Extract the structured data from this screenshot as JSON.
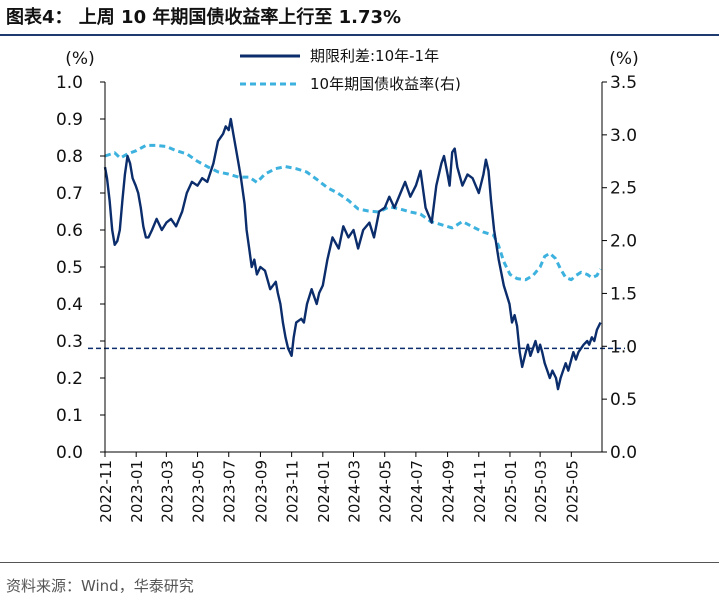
{
  "figure": {
    "title": "图表4：  上周 10 年期国债收益率上行至 1.73%",
    "source": "资料来源：Wind，华泰研究"
  },
  "colors": {
    "spread": "#0b2d6b",
    "yield": "#3db2de",
    "reference": "#0b2d6b",
    "axis": "#000000",
    "title_rule": "#1f3a6e"
  },
  "chart_data": {
    "type": "line",
    "left_unit": "(%)",
    "right_unit": "(%)",
    "left_ylim": [
      0,
      1.0
    ],
    "right_ylim": [
      0,
      3.5
    ],
    "left_ticks": [
      "0.0",
      "0.1",
      "0.2",
      "0.3",
      "0.4",
      "0.5",
      "0.6",
      "0.7",
      "0.8",
      "0.9",
      "1.0"
    ],
    "right_ticks": [
      "0.0",
      "0.5",
      "1.0",
      "1.5",
      "2.0",
      "2.5",
      "3.0",
      "3.5"
    ],
    "x_ticks": [
      "2022-11",
      "2023-01",
      "2023-03",
      "2023-05",
      "2023-07",
      "2023-09",
      "2023-11",
      "2024-01",
      "2024-03",
      "2024-05",
      "2024-07",
      "2024-09",
      "2024-11",
      "2025-01",
      "2025-03",
      "2025-05"
    ],
    "x_range": [
      "2022-11-01",
      "2025-06-30"
    ],
    "grid": false,
    "legend_position": "top-center",
    "reference_line": {
      "axis": "left",
      "y": 0.28,
      "style": "dashed"
    },
    "series": [
      {
        "name": "期限利差:10年-1年",
        "axis": "left",
        "style": "solid",
        "points": [
          [
            "2022-11-01",
            0.77
          ],
          [
            "2022-11-05",
            0.74
          ],
          [
            "2022-11-10",
            0.68
          ],
          [
            "2022-11-15",
            0.6
          ],
          [
            "2022-11-20",
            0.56
          ],
          [
            "2022-11-25",
            0.57
          ],
          [
            "2022-11-30",
            0.6
          ],
          [
            "2022-12-05",
            0.68
          ],
          [
            "2022-12-10",
            0.75
          ],
          [
            "2022-12-15",
            0.8
          ],
          [
            "2022-12-20",
            0.78
          ],
          [
            "2022-12-25",
            0.74
          ],
          [
            "2022-12-31",
            0.72
          ],
          [
            "2023-01-05",
            0.7
          ],
          [
            "2023-01-10",
            0.66
          ],
          [
            "2023-01-15",
            0.61
          ],
          [
            "2023-01-20",
            0.58
          ],
          [
            "2023-01-25",
            0.58
          ],
          [
            "2023-02-01",
            0.6
          ],
          [
            "2023-02-10",
            0.63
          ],
          [
            "2023-02-20",
            0.6
          ],
          [
            "2023-03-01",
            0.62
          ],
          [
            "2023-03-10",
            0.63
          ],
          [
            "2023-03-20",
            0.61
          ],
          [
            "2023-04-01",
            0.65
          ],
          [
            "2023-04-10",
            0.7
          ],
          [
            "2023-04-20",
            0.73
          ],
          [
            "2023-05-01",
            0.72
          ],
          [
            "2023-05-10",
            0.74
          ],
          [
            "2023-05-20",
            0.73
          ],
          [
            "2023-06-01",
            0.78
          ],
          [
            "2023-06-10",
            0.84
          ],
          [
            "2023-06-20",
            0.86
          ],
          [
            "2023-06-25",
            0.88
          ],
          [
            "2023-07-01",
            0.87
          ],
          [
            "2023-07-05",
            0.9
          ],
          [
            "2023-07-10",
            0.86
          ],
          [
            "2023-07-15",
            0.82
          ],
          [
            "2023-07-20",
            0.78
          ],
          [
            "2023-07-25",
            0.74
          ],
          [
            "2023-08-01",
            0.67
          ],
          [
            "2023-08-05",
            0.6
          ],
          [
            "2023-08-10",
            0.55
          ],
          [
            "2023-08-15",
            0.5
          ],
          [
            "2023-08-20",
            0.52
          ],
          [
            "2023-08-25",
            0.48
          ],
          [
            "2023-09-01",
            0.5
          ],
          [
            "2023-09-10",
            0.49
          ],
          [
            "2023-09-20",
            0.44
          ],
          [
            "2023-10-01",
            0.46
          ],
          [
            "2023-10-05",
            0.43
          ],
          [
            "2023-10-10",
            0.4
          ],
          [
            "2023-10-15",
            0.35
          ],
          [
            "2023-10-20",
            0.31
          ],
          [
            "2023-10-25",
            0.28
          ],
          [
            "2023-11-01",
            0.26
          ],
          [
            "2023-11-05",
            0.31
          ],
          [
            "2023-11-10",
            0.35
          ],
          [
            "2023-11-20",
            0.36
          ],
          [
            "2023-11-25",
            0.35
          ],
          [
            "2023-12-01",
            0.4
          ],
          [
            "2023-12-10",
            0.44
          ],
          [
            "2023-12-20",
            0.4
          ],
          [
            "2023-12-25",
            0.43
          ],
          [
            "2024-01-01",
            0.45
          ],
          [
            "2024-01-10",
            0.52
          ],
          [
            "2024-01-20",
            0.58
          ],
          [
            "2024-02-01",
            0.55
          ],
          [
            "2024-02-10",
            0.61
          ],
          [
            "2024-02-20",
            0.58
          ],
          [
            "2024-03-01",
            0.6
          ],
          [
            "2024-03-10",
            0.55
          ],
          [
            "2024-03-20",
            0.6
          ],
          [
            "2024-04-01",
            0.62
          ],
          [
            "2024-04-10",
            0.58
          ],
          [
            "2024-04-20",
            0.65
          ],
          [
            "2024-05-01",
            0.66
          ],
          [
            "2024-05-10",
            0.69
          ],
          [
            "2024-05-20",
            0.66
          ],
          [
            "2024-06-01",
            0.7
          ],
          [
            "2024-06-10",
            0.73
          ],
          [
            "2024-06-20",
            0.69
          ],
          [
            "2024-07-01",
            0.72
          ],
          [
            "2024-07-10",
            0.76
          ],
          [
            "2024-07-20",
            0.66
          ],
          [
            "2024-08-01",
            0.62
          ],
          [
            "2024-08-10",
            0.72
          ],
          [
            "2024-08-20",
            0.78
          ],
          [
            "2024-08-25",
            0.8
          ],
          [
            "2024-09-01",
            0.75
          ],
          [
            "2024-09-05",
            0.72
          ],
          [
            "2024-09-10",
            0.81
          ],
          [
            "2024-09-15",
            0.82
          ],
          [
            "2024-09-20",
            0.77
          ],
          [
            "2024-09-30",
            0.72
          ],
          [
            "2024-10-10",
            0.75
          ],
          [
            "2024-10-20",
            0.74
          ],
          [
            "2024-11-01",
            0.7
          ],
          [
            "2024-11-10",
            0.75
          ],
          [
            "2024-11-15",
            0.79
          ],
          [
            "2024-11-20",
            0.76
          ],
          [
            "2024-11-25",
            0.68
          ],
          [
            "2024-12-01",
            0.6
          ],
          [
            "2024-12-10",
            0.52
          ],
          [
            "2024-12-20",
            0.45
          ],
          [
            "2024-12-31",
            0.4
          ],
          [
            "2025-01-05",
            0.35
          ],
          [
            "2025-01-10",
            0.37
          ],
          [
            "2025-01-15",
            0.34
          ],
          [
            "2025-01-20",
            0.27
          ],
          [
            "2025-01-25",
            0.23
          ],
          [
            "2025-02-01",
            0.27
          ],
          [
            "2025-02-05",
            0.29
          ],
          [
            "2025-02-10",
            0.26
          ],
          [
            "2025-02-15",
            0.28
          ],
          [
            "2025-02-20",
            0.3
          ],
          [
            "2025-02-25",
            0.27
          ],
          [
            "2025-03-01",
            0.29
          ],
          [
            "2025-03-05",
            0.27
          ],
          [
            "2025-03-10",
            0.24
          ],
          [
            "2025-03-15",
            0.22
          ],
          [
            "2025-03-20",
            0.2
          ],
          [
            "2025-03-25",
            0.22
          ],
          [
            "2025-04-01",
            0.2
          ],
          [
            "2025-04-05",
            0.17
          ],
          [
            "2025-04-10",
            0.2
          ],
          [
            "2025-04-15",
            0.22
          ],
          [
            "2025-04-20",
            0.24
          ],
          [
            "2025-04-25",
            0.22
          ],
          [
            "2025-05-01",
            0.25
          ],
          [
            "2025-05-05",
            0.27
          ],
          [
            "2025-05-10",
            0.25
          ],
          [
            "2025-05-15",
            0.27
          ],
          [
            "2025-05-20",
            0.28
          ],
          [
            "2025-05-25",
            0.29
          ],
          [
            "2025-06-01",
            0.3
          ],
          [
            "2025-06-05",
            0.29
          ],
          [
            "2025-06-10",
            0.31
          ],
          [
            "2025-06-15",
            0.3
          ],
          [
            "2025-06-20",
            0.33
          ],
          [
            "2025-06-27",
            0.35
          ]
        ]
      },
      {
        "name": "10年期国债收益率(右)",
        "axis": "right",
        "style": "dashed",
        "points": [
          [
            "2022-11-01",
            2.8
          ],
          [
            "2022-11-20",
            2.83
          ],
          [
            "2022-12-01",
            2.78
          ],
          [
            "2022-12-15",
            2.82
          ],
          [
            "2023-01-01",
            2.85
          ],
          [
            "2023-01-20",
            2.9
          ],
          [
            "2023-02-10",
            2.9
          ],
          [
            "2023-03-01",
            2.89
          ],
          [
            "2023-03-20",
            2.85
          ],
          [
            "2023-04-10",
            2.82
          ],
          [
            "2023-05-01",
            2.75
          ],
          [
            "2023-05-20",
            2.7
          ],
          [
            "2023-06-10",
            2.65
          ],
          [
            "2023-06-30",
            2.63
          ],
          [
            "2023-07-20",
            2.6
          ],
          [
            "2023-08-10",
            2.6
          ],
          [
            "2023-08-25",
            2.55
          ],
          [
            "2023-09-10",
            2.63
          ],
          [
            "2023-09-30",
            2.68
          ],
          [
            "2023-10-20",
            2.7
          ],
          [
            "2023-11-10",
            2.68
          ],
          [
            "2023-11-30",
            2.65
          ],
          [
            "2023-12-20",
            2.58
          ],
          [
            "2024-01-10",
            2.5
          ],
          [
            "2024-01-30",
            2.45
          ],
          [
            "2024-02-20",
            2.38
          ],
          [
            "2024-03-10",
            2.3
          ],
          [
            "2024-03-30",
            2.28
          ],
          [
            "2024-04-20",
            2.27
          ],
          [
            "2024-05-10",
            2.32
          ],
          [
            "2024-05-30",
            2.3
          ],
          [
            "2024-06-20",
            2.27
          ],
          [
            "2024-07-10",
            2.25
          ],
          [
            "2024-07-30",
            2.18
          ],
          [
            "2024-08-20",
            2.15
          ],
          [
            "2024-09-10",
            2.12
          ],
          [
            "2024-09-30",
            2.18
          ],
          [
            "2024-10-20",
            2.13
          ],
          [
            "2024-11-10",
            2.08
          ],
          [
            "2024-11-30",
            2.05
          ],
          [
            "2024-12-10",
            1.95
          ],
          [
            "2024-12-20",
            1.8
          ],
          [
            "2025-01-01",
            1.68
          ],
          [
            "2025-01-15",
            1.64
          ],
          [
            "2025-02-01",
            1.63
          ],
          [
            "2025-02-15",
            1.67
          ],
          [
            "2025-03-01",
            1.75
          ],
          [
            "2025-03-10",
            1.85
          ],
          [
            "2025-03-20",
            1.88
          ],
          [
            "2025-03-31",
            1.83
          ],
          [
            "2025-04-10",
            1.73
          ],
          [
            "2025-04-20",
            1.65
          ],
          [
            "2025-05-01",
            1.63
          ],
          [
            "2025-05-10",
            1.67
          ],
          [
            "2025-05-20",
            1.7
          ],
          [
            "2025-06-01",
            1.68
          ],
          [
            "2025-06-10",
            1.65
          ],
          [
            "2025-06-20",
            1.67
          ],
          [
            "2025-06-27",
            1.73
          ]
        ]
      }
    ]
  }
}
